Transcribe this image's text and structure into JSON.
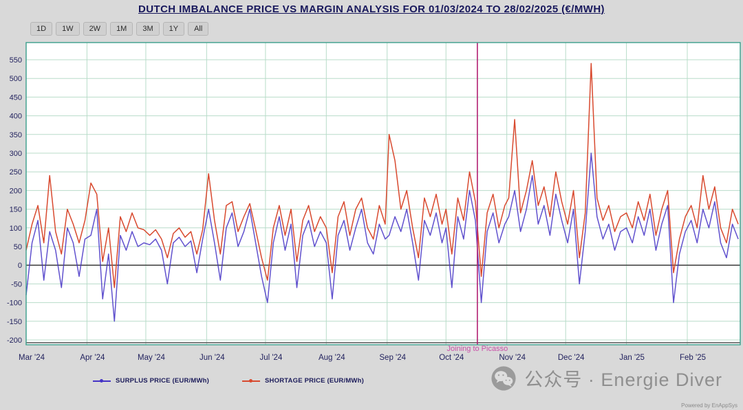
{
  "title": "DUTCH IMBALANCE PRICE VS MARGIN ANALYSIS FOR 01/03/2024 TO 28/02/2025 (€/MWH)",
  "toolbar": {
    "ranges": [
      "1D",
      "1W",
      "2W",
      "1M",
      "3M",
      "1Y",
      "All"
    ]
  },
  "watermark": {
    "text": "公众号 · Energie Diver",
    "icon": "wechat-icon"
  },
  "footer": {
    "powered_by": "Powered by EnAppSys"
  },
  "chart_data": {
    "type": "line",
    "title": "DUTCH IMBALANCE PRICE VS MARGIN ANALYSIS FOR 01/03/2024 TO 28/02/2025 (€/MWH)",
    "xlabel": "",
    "ylabel": "",
    "x_unit": "days since 01/03/2024",
    "x_range": [
      0,
      364
    ],
    "ylim": [
      -200,
      550
    ],
    "y_tick_step": 50,
    "grid": true,
    "legend_position": "bottom",
    "x_tick_labels": [
      "Mar '24",
      "Apr '24",
      "May '24",
      "Jun '24",
      "Jul '24",
      "Aug '24",
      "Sep '24",
      "Oct '24",
      "Nov '24",
      "Dec '24",
      "Jan '25",
      "Feb '25"
    ],
    "x_tick_days": [
      0,
      31,
      61,
      92,
      122,
      153,
      184,
      214,
      245,
      275,
      306,
      337
    ],
    "x": [
      0,
      3,
      6,
      9,
      12,
      15,
      18,
      21,
      24,
      27,
      30,
      33,
      36,
      39,
      42,
      45,
      48,
      51,
      54,
      57,
      60,
      63,
      66,
      69,
      72,
      75,
      78,
      81,
      84,
      87,
      90,
      93,
      96,
      99,
      102,
      105,
      108,
      111,
      114,
      117,
      120,
      123,
      126,
      129,
      132,
      135,
      138,
      141,
      144,
      147,
      150,
      153,
      156,
      159,
      162,
      165,
      168,
      171,
      174,
      177,
      180,
      183,
      185,
      188,
      191,
      194,
      197,
      200,
      203,
      206,
      209,
      212,
      214,
      217,
      220,
      223,
      226,
      229,
      232,
      235,
      238,
      241,
      244,
      246,
      249,
      252,
      255,
      258,
      261,
      264,
      267,
      270,
      273,
      276,
      279,
      282,
      285,
      288,
      291,
      294,
      297,
      300,
      303,
      306,
      309,
      312,
      315,
      318,
      321,
      324,
      327,
      330,
      333,
      336,
      339,
      342,
      345,
      348,
      351,
      354,
      357,
      360,
      363
    ],
    "series": [
      {
        "name": "SURPLUS PRICE (EUR/MWh)",
        "color": "#4433c6",
        "values": [
          -80,
          60,
          120,
          -40,
          90,
          40,
          -60,
          100,
          60,
          -30,
          70,
          80,
          150,
          -90,
          30,
          -150,
          80,
          40,
          90,
          50,
          60,
          55,
          70,
          40,
          -50,
          60,
          75,
          50,
          65,
          -20,
          70,
          150,
          60,
          -40,
          100,
          140,
          50,
          90,
          150,
          60,
          -30,
          -100,
          60,
          130,
          40,
          110,
          -60,
          80,
          120,
          50,
          90,
          60,
          -90,
          80,
          120,
          40,
          100,
          150,
          60,
          30,
          110,
          70,
          80,
          130,
          90,
          150,
          60,
          -40,
          120,
          80,
          140,
          60,
          100,
          -60,
          130,
          70,
          200,
          120,
          -100,
          90,
          140,
          60,
          110,
          130,
          200,
          90,
          150,
          240,
          110,
          160,
          80,
          190,
          120,
          60,
          150,
          -50,
          90,
          300,
          130,
          70,
          110,
          40,
          90,
          100,
          60,
          130,
          80,
          150,
          40,
          110,
          160,
          -100,
          30,
          90,
          120,
          60,
          150,
          100,
          170,
          60,
          20,
          110,
          70
        ]
      },
      {
        "name": "SHORTAGE PRICE (EUR/MWh)",
        "color": "#d8492e",
        "values": [
          40,
          110,
          160,
          60,
          240,
          90,
          30,
          150,
          110,
          60,
          120,
          220,
          190,
          10,
          100,
          -60,
          130,
          90,
          140,
          100,
          95,
          80,
          95,
          70,
          20,
          85,
          100,
          75,
          90,
          30,
          95,
          245,
          120,
          30,
          160,
          170,
          90,
          130,
          165,
          95,
          20,
          -40,
          100,
          160,
          80,
          150,
          10,
          120,
          160,
          90,
          130,
          100,
          -20,
          130,
          170,
          80,
          150,
          180,
          100,
          70,
          160,
          110,
          350,
          280,
          150,
          200,
          100,
          20,
          180,
          130,
          190,
          110,
          150,
          30,
          180,
          120,
          250,
          170,
          -30,
          140,
          190,
          100,
          160,
          180,
          390,
          140,
          200,
          280,
          160,
          210,
          130,
          250,
          170,
          110,
          200,
          20,
          140,
          540,
          180,
          120,
          160,
          90,
          130,
          140,
          100,
          170,
          120,
          190,
          80,
          150,
          200,
          -20,
          70,
          130,
          160,
          100,
          240,
          150,
          210,
          100,
          60,
          150,
          110
        ]
      }
    ],
    "annotations": [
      {
        "type": "vline",
        "x_day": 230,
        "label": "Joining to Picasso",
        "line_color": "#b21f72",
        "label_color": "#c94fa8"
      }
    ]
  }
}
